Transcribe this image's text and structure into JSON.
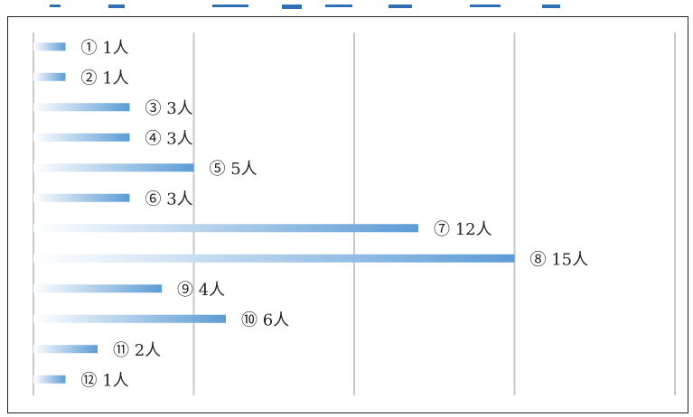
{
  "chart_data": {
    "type": "bar",
    "orientation": "horizontal",
    "categories": [
      "①",
      "②",
      "③",
      "④",
      "⑤",
      "⑥",
      "⑦",
      "⑧",
      "⑨",
      "⑩",
      "⑪",
      "⑫"
    ],
    "values": [
      1,
      1,
      3,
      3,
      5,
      3,
      12,
      15,
      4,
      6,
      2,
      1
    ],
    "data_labels": [
      "① 1人",
      "② 1人",
      "③ 3人",
      "④ 3人",
      "⑤ 5人",
      "⑥ 3人",
      "⑦ 12人",
      "⑧ 15人",
      "⑨ 4人",
      "⑩ 6人",
      "⑪ 2人",
      "⑫ 1人"
    ],
    "xlim": [
      0,
      20
    ],
    "x_gridlines": [
      0,
      5,
      10,
      15,
      20
    ],
    "grid": true,
    "legend": "none",
    "title": "",
    "xlabel": "",
    "ylabel": "",
    "colors": {
      "bar_start": "#ffffff",
      "bar_end": "#5b9bd5",
      "grid": "#c8c8c8",
      "frame": "#222222",
      "header_accent": "#2e6fb5"
    }
  }
}
